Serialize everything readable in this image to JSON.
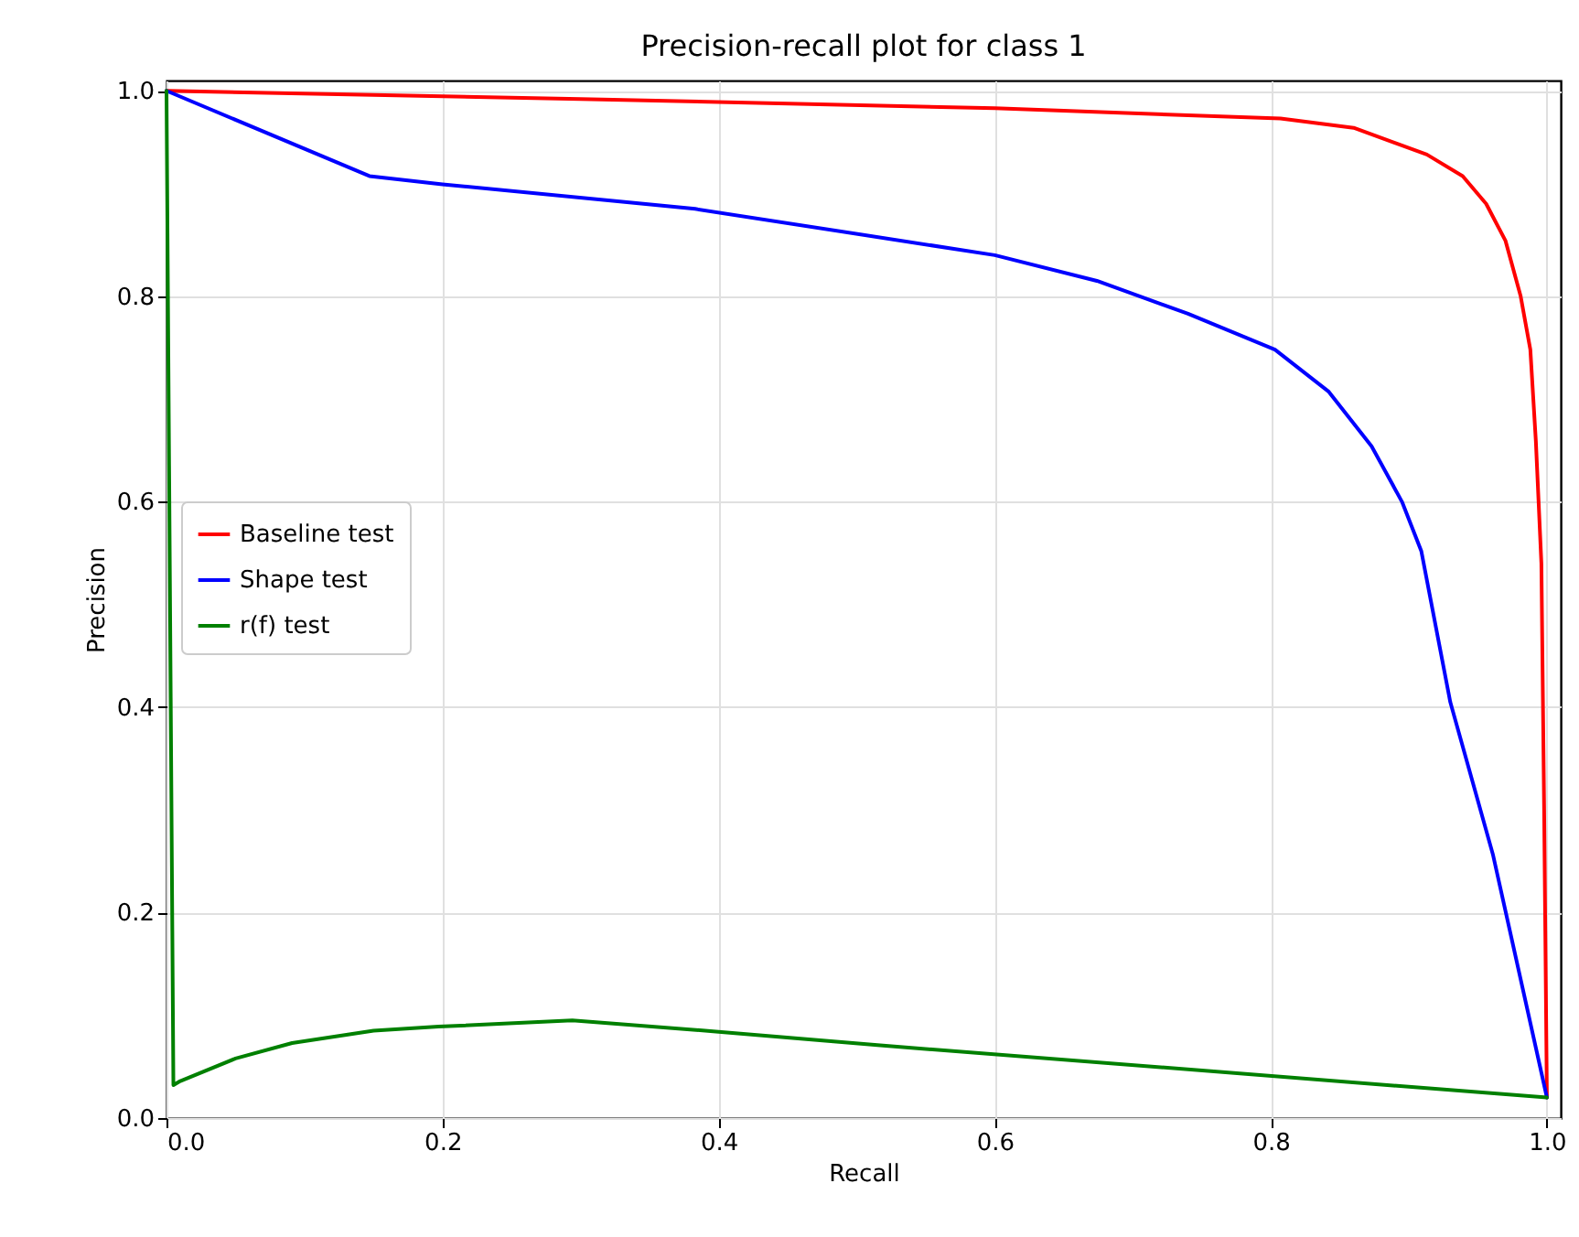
{
  "chart_data": {
    "type": "line",
    "title": "Precision-recall plot for class 1",
    "xlabel": "Recall",
    "ylabel": "Precision",
    "xlim": [
      0,
      1.01
    ],
    "ylim": [
      0,
      1.01
    ],
    "xticks": [
      {
        "value": 0,
        "label": "0.0"
      },
      0.2,
      0.4,
      0.6,
      0.8,
      {
        "value": 1,
        "label": "1.0"
      }
    ],
    "yticks": [
      {
        "value": 0,
        "label": "0.0"
      },
      0.2,
      0.4,
      0.6,
      0.8,
      {
        "value": 1,
        "label": "1.0"
      }
    ],
    "grid": true,
    "legend": "left",
    "line_style": "solid",
    "series": [
      {
        "name": "Baseline test",
        "color": "#ff0000",
        "x": [
          0,
          0.3,
          0.6,
          0.807,
          0.86,
          0.913,
          0.939,
          0.956,
          0.97,
          0.981,
          0.988,
          0.992,
          0.996,
          0.998,
          1.0
        ],
        "values": [
          1.0,
          0.992,
          0.983,
          0.973,
          0.964,
          0.938,
          0.917,
          0.89,
          0.854,
          0.8,
          0.748,
          0.659,
          0.54,
          0.3,
          0.02
        ]
      },
      {
        "name": "Shape test",
        "color": "#0000ff",
        "x": [
          0,
          0.147,
          0.2,
          0.383,
          0.6,
          0.674,
          0.74,
          0.803,
          0.842,
          0.873,
          0.895,
          0.909,
          0.93,
          0.961,
          1.0
        ],
        "values": [
          1.0,
          0.917,
          0.909,
          0.885,
          0.84,
          0.815,
          0.783,
          0.748,
          0.707,
          0.654,
          0.6,
          0.552,
          0.405,
          0.256,
          0.02
        ]
      },
      {
        "name": "r(f) test",
        "color": "#008000",
        "x": [
          0,
          0.005,
          0.01,
          0.05,
          0.091,
          0.15,
          0.197,
          0.294,
          0.4,
          0.515,
          1.0
        ],
        "values": [
          1.0,
          0.032,
          0.036,
          0.058,
          0.073,
          0.085,
          0.089,
          0.095,
          0.084,
          0.071,
          0.02
        ]
      }
    ]
  }
}
